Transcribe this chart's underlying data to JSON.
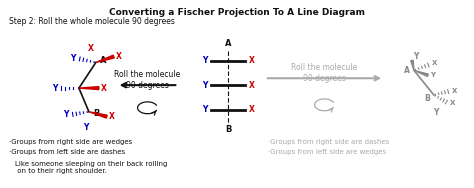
{
  "title": "Converting a Fischer Projection To A Line Diagram",
  "step_text": "Step 2: Roll the whole molecule 90 degrees",
  "left_roll_text": "Roll the molecule\n90 degrees",
  "right_roll_text": "Roll the molecule\n90 degrees",
  "left_notes": [
    "·Groups from right side are wedges",
    "·Groups from left side are dashes"
  ],
  "left_note3": "Like someone sleeping on their back rolling\n on to their right shoulder.",
  "right_notes": [
    "·Groups from right side are dashes",
    "·Groups from left side are wedges"
  ],
  "bg_color": "#ffffff",
  "red_color": "#cc0000",
  "blue_color": "#0000bb",
  "gray_color": "#aaaaaa",
  "dark_gray": "#888888",
  "black": "#111111"
}
